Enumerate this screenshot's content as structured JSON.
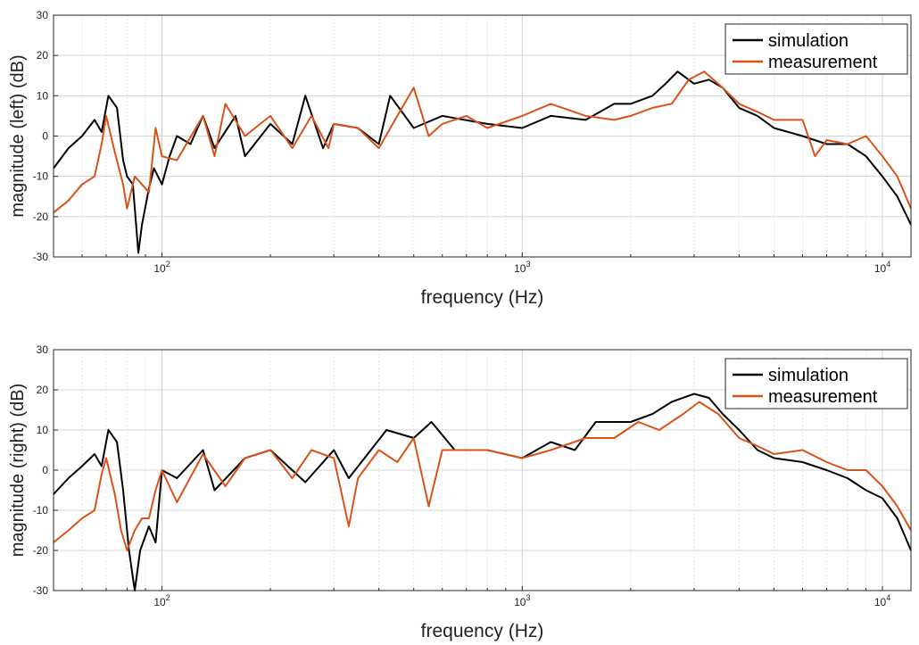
{
  "chart_data": [
    {
      "type": "line",
      "xlabel": "frequency (Hz)",
      "ylabel": "magnitude (left) (dB)",
      "xscale": "log",
      "xlim": [
        50,
        12000
      ],
      "ylim": [
        -30,
        30
      ],
      "yticks": [
        30,
        20,
        10,
        0,
        -10,
        -20,
        -30
      ],
      "xticks": [
        {
          "value": 100,
          "base": "10",
          "exp": "2"
        },
        {
          "value": 1000,
          "base": "10",
          "exp": "3"
        },
        {
          "value": 10000,
          "base": "10",
          "exp": "4"
        }
      ],
      "grid": true,
      "legend_position": "top-right",
      "series": [
        {
          "name": "simulation",
          "color": "#000000",
          "points": [
            [
              50,
              -8
            ],
            [
              55,
              -3
            ],
            [
              60,
              0
            ],
            [
              65,
              4
            ],
            [
              68,
              1
            ],
            [
              71,
              10
            ],
            [
              75,
              7
            ],
            [
              78,
              -6
            ],
            [
              80,
              -10
            ],
            [
              83,
              -12
            ],
            [
              86,
              -29
            ],
            [
              88,
              -22
            ],
            [
              92,
              -13
            ],
            [
              95,
              -8
            ],
            [
              100,
              -12
            ],
            [
              105,
              -5
            ],
            [
              110,
              0
            ],
            [
              120,
              -2
            ],
            [
              130,
              5
            ],
            [
              140,
              -3
            ],
            [
              160,
              5
            ],
            [
              170,
              -5
            ],
            [
              200,
              3
            ],
            [
              230,
              -2
            ],
            [
              250,
              10
            ],
            [
              280,
              -3
            ],
            [
              300,
              3
            ],
            [
              350,
              2
            ],
            [
              400,
              -2
            ],
            [
              430,
              10
            ],
            [
              500,
              2
            ],
            [
              600,
              5
            ],
            [
              800,
              3
            ],
            [
              1000,
              2
            ],
            [
              1200,
              5
            ],
            [
              1500,
              4
            ],
            [
              1800,
              8
            ],
            [
              2000,
              8
            ],
            [
              2300,
              10
            ],
            [
              2500,
              13
            ],
            [
              2700,
              16
            ],
            [
              3000,
              13
            ],
            [
              3300,
              14
            ],
            [
              3600,
              12
            ],
            [
              4000,
              7
            ],
            [
              4500,
              5
            ],
            [
              5000,
              2
            ],
            [
              6000,
              0
            ],
            [
              7000,
              -2
            ],
            [
              8000,
              -2
            ],
            [
              9000,
              -5
            ],
            [
              10000,
              -10
            ],
            [
              11000,
              -15
            ],
            [
              12000,
              -22
            ]
          ]
        },
        {
          "name": "measurement",
          "color": "#d95319",
          "points": [
            [
              50,
              -19
            ],
            [
              55,
              -16
            ],
            [
              60,
              -12
            ],
            [
              65,
              -10
            ],
            [
              68,
              -2
            ],
            [
              70,
              5
            ],
            [
              74,
              -4
            ],
            [
              78,
              -12
            ],
            [
              80,
              -18
            ],
            [
              84,
              -10
            ],
            [
              88,
              -12
            ],
            [
              92,
              -14
            ],
            [
              96,
              2
            ],
            [
              100,
              -5
            ],
            [
              110,
              -6
            ],
            [
              130,
              5
            ],
            [
              140,
              -5
            ],
            [
              150,
              8
            ],
            [
              170,
              0
            ],
            [
              200,
              5
            ],
            [
              230,
              -3
            ],
            [
              260,
              5
            ],
            [
              290,
              -3
            ],
            [
              300,
              3
            ],
            [
              350,
              2
            ],
            [
              400,
              -3
            ],
            [
              450,
              5
            ],
            [
              500,
              12
            ],
            [
              550,
              0
            ],
            [
              600,
              3
            ],
            [
              700,
              5
            ],
            [
              800,
              2
            ],
            [
              1000,
              5
            ],
            [
              1200,
              8
            ],
            [
              1500,
              5
            ],
            [
              1800,
              4
            ],
            [
              2000,
              5
            ],
            [
              2300,
              7
            ],
            [
              2600,
              8
            ],
            [
              2900,
              14
            ],
            [
              3200,
              16
            ],
            [
              3600,
              12
            ],
            [
              4000,
              8
            ],
            [
              4500,
              6
            ],
            [
              5000,
              4
            ],
            [
              6000,
              4
            ],
            [
              6500,
              -5
            ],
            [
              7000,
              -1
            ],
            [
              8000,
              -2
            ],
            [
              9000,
              0
            ],
            [
              10000,
              -5
            ],
            [
              11000,
              -10
            ],
            [
              12000,
              -18
            ]
          ]
        }
      ]
    },
    {
      "type": "line",
      "xlabel": "frequency (Hz)",
      "ylabel": "magnitude (right) (dB)",
      "xscale": "log",
      "xlim": [
        50,
        12000
      ],
      "ylim": [
        -30,
        30
      ],
      "yticks": [
        30,
        20,
        10,
        0,
        -10,
        -20,
        -30
      ],
      "xticks": [
        {
          "value": 100,
          "base": "10",
          "exp": "2"
        },
        {
          "value": 1000,
          "base": "10",
          "exp": "3"
        },
        {
          "value": 10000,
          "base": "10",
          "exp": "4"
        }
      ],
      "grid": true,
      "legend_position": "top-right",
      "series": [
        {
          "name": "simulation",
          "color": "#000000",
          "points": [
            [
              50,
              -6
            ],
            [
              55,
              -2
            ],
            [
              60,
              1
            ],
            [
              65,
              4
            ],
            [
              68,
              1
            ],
            [
              71,
              10
            ],
            [
              75,
              7
            ],
            [
              78,
              -5
            ],
            [
              81,
              -20
            ],
            [
              84,
              -30
            ],
            [
              87,
              -20
            ],
            [
              92,
              -14
            ],
            [
              96,
              -18
            ],
            [
              100,
              0
            ],
            [
              110,
              -2
            ],
            [
              130,
              5
            ],
            [
              140,
              -5
            ],
            [
              170,
              3
            ],
            [
              200,
              5
            ],
            [
              250,
              -3
            ],
            [
              300,
              5
            ],
            [
              330,
              -2
            ],
            [
              380,
              5
            ],
            [
              420,
              10
            ],
            [
              500,
              8
            ],
            [
              560,
              12
            ],
            [
              650,
              5
            ],
            [
              800,
              5
            ],
            [
              1000,
              3
            ],
            [
              1200,
              7
            ],
            [
              1400,
              5
            ],
            [
              1600,
              12
            ],
            [
              2000,
              12
            ],
            [
              2300,
              14
            ],
            [
              2600,
              17
            ],
            [
              3000,
              19
            ],
            [
              3300,
              18
            ],
            [
              3600,
              14
            ],
            [
              4000,
              10
            ],
            [
              4500,
              5
            ],
            [
              5000,
              3
            ],
            [
              6000,
              2
            ],
            [
              7000,
              0
            ],
            [
              8000,
              -2
            ],
            [
              9000,
              -5
            ],
            [
              10000,
              -7
            ],
            [
              11000,
              -12
            ],
            [
              12000,
              -20
            ]
          ]
        },
        {
          "name": "measurement",
          "color": "#d95319",
          "points": [
            [
              50,
              -18
            ],
            [
              55,
              -15
            ],
            [
              60,
              -12
            ],
            [
              65,
              -10
            ],
            [
              68,
              -1
            ],
            [
              70,
              3
            ],
            [
              74,
              -6
            ],
            [
              77,
              -15
            ],
            [
              80,
              -20
            ],
            [
              84,
              -15
            ],
            [
              88,
              -12
            ],
            [
              92,
              -12
            ],
            [
              96,
              -5
            ],
            [
              100,
              0
            ],
            [
              110,
              -8
            ],
            [
              130,
              4
            ],
            [
              150,
              -4
            ],
            [
              170,
              3
            ],
            [
              200,
              5
            ],
            [
              230,
              -2
            ],
            [
              260,
              5
            ],
            [
              300,
              3
            ],
            [
              330,
              -14
            ],
            [
              350,
              -2
            ],
            [
              400,
              5
            ],
            [
              450,
              2
            ],
            [
              500,
              8
            ],
            [
              550,
              -9
            ],
            [
              600,
              5
            ],
            [
              800,
              5
            ],
            [
              1000,
              3
            ],
            [
              1200,
              5
            ],
            [
              1500,
              8
            ],
            [
              1800,
              8
            ],
            [
              2100,
              12
            ],
            [
              2400,
              10
            ],
            [
              2800,
              14
            ],
            [
              3100,
              17
            ],
            [
              3500,
              14
            ],
            [
              4000,
              8
            ],
            [
              4500,
              6
            ],
            [
              5000,
              4
            ],
            [
              6000,
              5
            ],
            [
              7000,
              2
            ],
            [
              8000,
              0
            ],
            [
              9000,
              0
            ],
            [
              10000,
              -4
            ],
            [
              11000,
              -9
            ],
            [
              12000,
              -15
            ]
          ]
        }
      ]
    }
  ]
}
